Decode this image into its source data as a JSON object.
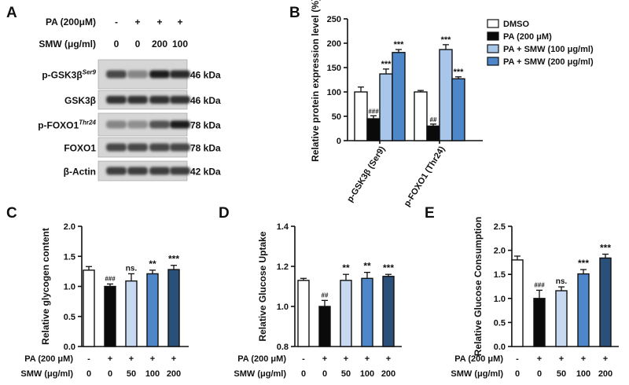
{
  "panel_letters": [
    "A",
    "B",
    "C",
    "D",
    "E"
  ],
  "colors": {
    "dmso": "#ffffff",
    "pa": "#0a0a0a",
    "smw50": "#c7d9f0",
    "smw100": "#4d86c9",
    "smw200": "#2a4f79",
    "smw_low_B": "#a8c6ea",
    "smw_high_B": "#4d86c9"
  },
  "blot": {
    "conditions": {
      "pa_label": "PA (200μM)",
      "pa_values": [
        "-",
        "+",
        "+",
        "+"
      ],
      "smw_label": "SMW (μg/ml)",
      "smw_values": [
        "0",
        "0",
        "200",
        "100"
      ]
    },
    "bands": [
      {
        "label": "p-GSK3β",
        "sup": "Ser9",
        "kda": "46 kDa"
      },
      {
        "label": "GSK3β",
        "sup": "",
        "kda": "46 kDa"
      },
      {
        "label": "p-FOXO1",
        "sup": "Thr24",
        "kda": "78 kDa"
      },
      {
        "label": "FOXO1",
        "sup": "",
        "kda": "78 kDa"
      },
      {
        "label": "β-Actin",
        "sup": "",
        "kda": "42 kDa"
      }
    ],
    "intensities": [
      [
        0.75,
        0.45,
        0.95,
        0.9
      ],
      [
        0.85,
        0.85,
        0.85,
        0.85
      ],
      [
        0.45,
        0.4,
        0.7,
        0.95
      ],
      [
        0.75,
        0.75,
        0.75,
        0.75
      ],
      [
        0.8,
        0.8,
        0.8,
        0.8
      ]
    ]
  },
  "chart_data": [
    {
      "panel": "B",
      "type": "bar",
      "ylabel": "Relative protein expression level (%)",
      "ylim": [
        0,
        250
      ],
      "yticks": [
        0,
        50,
        100,
        150,
        200,
        250
      ],
      "categories": [
        "p-GSK3β (Ser9)",
        "p-FOXO1 (Thr24)"
      ],
      "series": [
        {
          "name": "DMSO",
          "values": [
            100,
            100
          ],
          "errors": [
            10,
            3
          ],
          "labels": [
            "",
            ""
          ]
        },
        {
          "name": "PA (200 μM)",
          "values": [
            45,
            30
          ],
          "errors": [
            6,
            4
          ],
          "labels": [
            "###",
            "##"
          ]
        },
        {
          "name": "PA + SMW (100 μg/ml)",
          "values": [
            137,
            187
          ],
          "errors": [
            10,
            10
          ],
          "labels": [
            "***",
            "***"
          ]
        },
        {
          "name": "PA + SMW (200 μg/ml)",
          "values": [
            181,
            127
          ],
          "errors": [
            6,
            4
          ],
          "labels": [
            "***",
            "***"
          ]
        }
      ]
    },
    {
      "panel": "C",
      "type": "bar",
      "ylabel": "Relative glycogen content",
      "ylim": [
        0,
        2.0
      ],
      "yticks": [
        "0.0",
        "0.5",
        "1.0",
        "1.5",
        "2.0"
      ],
      "values": [
        1.27,
        1.0,
        1.09,
        1.21,
        1.28
      ],
      "errors": [
        0.06,
        0.04,
        0.12,
        0.06,
        0.07
      ],
      "labels": [
        "",
        "###",
        "ns.",
        "**",
        "***"
      ],
      "pa_label": "PA (200 μM)",
      "pa_values": [
        "-",
        "+",
        "+",
        "+",
        "+"
      ],
      "smw_label": "SMW (μg/ml)",
      "smw_values": [
        "0",
        "0",
        "50",
        "100",
        "200"
      ]
    },
    {
      "panel": "D",
      "type": "bar",
      "ylabel": "Relative Glucose Uptake",
      "ylim": [
        0.8,
        1.4
      ],
      "yticks": [
        "0.8",
        "1.0",
        "1.2",
        "1.4"
      ],
      "values": [
        1.13,
        1.0,
        1.13,
        1.14,
        1.15
      ],
      "errors": [
        0.01,
        0.03,
        0.03,
        0.03,
        0.01
      ],
      "labels": [
        "",
        "##",
        "**",
        "**",
        "***"
      ],
      "pa_label": "PA (200 μM)",
      "pa_values": [
        "-",
        "+",
        "+",
        "+",
        "+"
      ],
      "smw_label": "SMW (μg/ml)",
      "smw_values": [
        "0",
        "0",
        "50",
        "100",
        "200"
      ]
    },
    {
      "panel": "E",
      "type": "bar",
      "ylabel": "Relative Glucose Consumption",
      "ylim": [
        0,
        2.5
      ],
      "yticks": [
        "0.0",
        "0.5",
        "1.0",
        "1.5",
        "2.0",
        "2.5"
      ],
      "values": [
        1.8,
        1.0,
        1.16,
        1.51,
        1.84
      ],
      "errors": [
        0.08,
        0.17,
        0.08,
        0.09,
        0.08
      ],
      "labels": [
        "",
        "###",
        "ns.",
        "***",
        "***"
      ],
      "pa_label": "PA (200 μM)",
      "pa_values": [
        "-",
        "+",
        "+",
        "+",
        "+"
      ],
      "smw_label": "SMW (μg/ml)",
      "smw_values": [
        "0",
        "0",
        "50",
        "100",
        "200"
      ]
    }
  ]
}
